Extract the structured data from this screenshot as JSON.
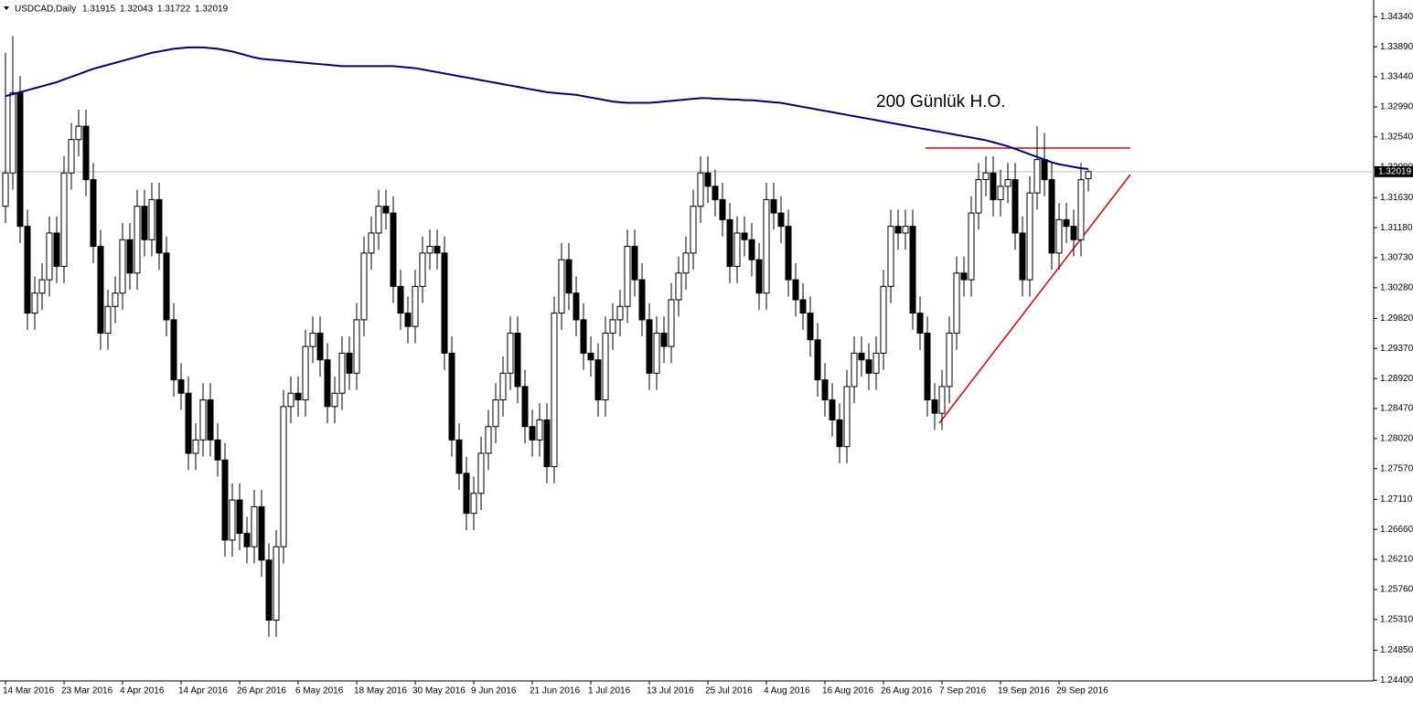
{
  "chart_data": {
    "type": "candlestick",
    "title": "USDCAD,Daily",
    "categories": [
      "14 Mar 2016",
      null,
      null,
      null,
      null,
      null,
      null,
      null,
      "23 Mar 2016",
      null,
      null,
      null,
      null,
      null,
      null,
      null,
      "4 Apr 2016",
      null,
      null,
      null,
      null,
      null,
      null,
      null,
      "14 Apr 2016",
      null,
      null,
      null,
      null,
      null,
      null,
      null,
      "26 Apr 2016",
      null,
      null,
      null,
      null,
      null,
      null,
      null,
      "6 May 2016",
      null,
      null,
      null,
      null,
      null,
      null,
      null,
      "18 May 2016",
      null,
      null,
      null,
      null,
      null,
      null,
      null,
      "30 May 2016",
      null,
      null,
      null,
      null,
      null,
      null,
      null,
      "9 Jun 2016",
      null,
      null,
      null,
      null,
      null,
      null,
      null,
      "21 Jun 2016",
      null,
      null,
      null,
      null,
      null,
      null,
      null,
      "1 Jul 2016",
      null,
      null,
      null,
      null,
      null,
      null,
      null,
      "13 Jul 2016",
      null,
      null,
      null,
      null,
      null,
      null,
      null,
      "25 Jul 2016",
      null,
      null,
      null,
      null,
      null,
      null,
      null,
      "4 Aug 2016",
      null,
      null,
      null,
      null,
      null,
      null,
      null,
      "16 Aug 2016",
      null,
      null,
      null,
      null,
      null,
      null,
      null,
      "26 Aug 2016",
      null,
      null,
      null,
      null,
      null,
      null,
      null,
      "7 Sep 2016",
      null,
      null,
      null,
      null,
      null,
      null,
      null,
      "19 Sep 2016",
      null,
      null,
      null,
      null,
      null,
      null,
      null,
      "29 Sep 2016",
      null,
      null,
      null,
      null
    ],
    "open": [
      1.315,
      1.32,
      1.332,
      1.312,
      1.299,
      1.302,
      1.304,
      1.311,
      1.306,
      1.32,
      1.325,
      1.327,
      1.319,
      1.309,
      1.296,
      1.3,
      1.302,
      1.31,
      1.305,
      1.315,
      1.31,
      1.316,
      1.308,
      1.298,
      1.289,
      1.287,
      1.278,
      1.28,
      1.286,
      1.28,
      1.277,
      1.265,
      1.271,
      1.266,
      1.264,
      1.27,
      1.262,
      1.253,
      1.264,
      1.285,
      1.287,
      1.286,
      1.294,
      1.296,
      1.292,
      1.285,
      1.287,
      1.293,
      1.29,
      1.298,
      1.308,
      1.311,
      1.315,
      1.314,
      1.303,
      1.299,
      1.297,
      1.303,
      1.308,
      1.309,
      1.308,
      1.293,
      1.28,
      1.275,
      1.269,
      1.272,
      1.278,
      1.282,
      1.286,
      1.29,
      1.296,
      1.288,
      1.282,
      1.28,
      1.283,
      1.276,
      1.299,
      1.307,
      1.302,
      1.298,
      1.293,
      1.292,
      1.286,
      1.296,
      1.298,
      1.3,
      1.309,
      1.304,
      1.298,
      1.29,
      1.296,
      1.294,
      1.301,
      1.305,
      1.308,
      1.315,
      1.32,
      1.318,
      1.316,
      1.313,
      1.306,
      1.311,
      1.31,
      1.307,
      1.302,
      1.316,
      1.314,
      1.312,
      1.304,
      1.301,
      1.299,
      1.295,
      1.289,
      1.286,
      1.283,
      1.279,
      1.288,
      1.293,
      1.292,
      1.29,
      1.293,
      1.303,
      1.312,
      1.311,
      1.312,
      1.299,
      1.296,
      1.286,
      1.284,
      1.288,
      1.296,
      1.305,
      1.304,
      1.314,
      1.319,
      1.32,
      1.316,
      1.318,
      1.319,
      1.311,
      1.304,
      1.317,
      1.322,
      1.319,
      1.308,
      1.313,
      1.312,
      1.31,
      1.31915
    ],
    "high": [
      1.338,
      1.3405,
      1.3345,
      1.3145,
      1.3045,
      1.3065,
      1.3135,
      1.3135,
      1.3225,
      1.3275,
      1.3295,
      1.3295,
      1.3215,
      1.3115,
      1.3025,
      1.3045,
      1.3125,
      1.3125,
      1.3175,
      1.3175,
      1.3185,
      1.3185,
      1.3105,
      1.3005,
      1.2915,
      1.2895,
      1.2825,
      1.2885,
      1.2885,
      1.2825,
      1.2795,
      1.2735,
      1.2735,
      1.2685,
      1.2725,
      1.2725,
      1.2645,
      1.2665,
      1.2875,
      1.2895,
      1.2895,
      1.2965,
      1.2985,
      1.2985,
      1.2945,
      1.2895,
      1.2955,
      1.2955,
      1.3005,
      1.3105,
      1.3135,
      1.3175,
      1.3175,
      1.3165,
      1.3055,
      1.3015,
      1.3055,
      1.3105,
      1.3115,
      1.3115,
      1.3105,
      1.2955,
      1.2825,
      1.2775,
      1.2745,
      1.2805,
      1.2845,
      1.2885,
      1.2925,
      1.2985,
      1.2985,
      1.2905,
      1.2845,
      1.2855,
      1.2855,
      1.3015,
      1.3095,
      1.3095,
      1.3045,
      1.3005,
      1.2955,
      1.2945,
      1.2985,
      1.3005,
      1.3025,
      1.3115,
      1.3115,
      1.3065,
      1.3005,
      1.2985,
      1.2985,
      1.3035,
      1.3075,
      1.3105,
      1.3175,
      1.3225,
      1.3225,
      1.3205,
      1.3185,
      1.3155,
      1.3135,
      1.3135,
      1.3125,
      1.3095,
      1.3185,
      1.3185,
      1.3165,
      1.3145,
      1.3065,
      1.3035,
      1.3015,
      1.2975,
      1.2915,
      1.2885,
      1.2855,
      1.2905,
      1.2955,
      1.2955,
      1.2945,
      1.2955,
      1.3055,
      1.3145,
      1.3145,
      1.3145,
      1.3145,
      1.3015,
      1.2985,
      1.2885,
      1.2905,
      1.2985,
      1.3075,
      1.3075,
      1.3165,
      1.3215,
      1.3225,
      1.3225,
      1.3205,
      1.3215,
      1.3215,
      1.3135,
      1.3195,
      1.327,
      1.326,
      1.3215,
      1.3155,
      1.3155,
      1.3145,
      1.3215,
      1.32043
    ],
    "low": [
      1.3125,
      1.3175,
      1.3095,
      1.2965,
      1.2965,
      1.2995,
      1.3015,
      1.3035,
      1.3035,
      1.3175,
      1.3225,
      1.3165,
      1.3065,
      1.2935,
      1.2935,
      1.2975,
      1.2995,
      1.3025,
      1.3025,
      1.3075,
      1.3075,
      1.3055,
      1.2955,
      1.2865,
      1.2845,
      1.2755,
      1.2755,
      1.2775,
      1.2775,
      1.2745,
      1.2625,
      1.2625,
      1.2635,
      1.2615,
      1.2615,
      1.2595,
      1.2505,
      1.2505,
      1.2615,
      1.2825,
      1.2835,
      1.2835,
      1.2915,
      1.2895,
      1.2825,
      1.2825,
      1.2845,
      1.2875,
      1.2875,
      1.2955,
      1.3055,
      1.3085,
      1.3115,
      1.3005,
      1.2965,
      1.2945,
      1.2945,
      1.3005,
      1.3055,
      1.3055,
      1.2905,
      1.2775,
      1.2725,
      1.2665,
      1.2665,
      1.2695,
      1.2755,
      1.2795,
      1.2835,
      1.2875,
      1.2855,
      1.2795,
      1.2775,
      1.2775,
      1.2735,
      1.2735,
      1.2965,
      1.2995,
      1.2955,
      1.2905,
      1.2895,
      1.2835,
      1.2835,
      1.2935,
      1.2955,
      1.2975,
      1.3015,
      1.2955,
      1.2875,
      1.2875,
      1.2915,
      1.2915,
      1.2985,
      1.3025,
      1.3055,
      1.3125,
      1.3155,
      1.3135,
      1.3105,
      1.3035,
      1.3035,
      1.3075,
      1.3045,
      1.2995,
      1.2995,
      1.3115,
      1.3095,
      1.3015,
      1.2985,
      1.2965,
      1.2925,
      1.2865,
      1.2835,
      1.2805,
      1.2765,
      1.2765,
      1.2855,
      1.2895,
      1.2875,
      1.2875,
      1.2905,
      1.3005,
      1.3085,
      1.3085,
      1.2965,
      1.2935,
      1.2835,
      1.2815,
      1.2815,
      1.2855,
      1.2935,
      1.3015,
      1.3015,
      1.3115,
      1.3165,
      1.3135,
      1.3135,
      1.3155,
      1.3085,
      1.3015,
      1.3015,
      1.3145,
      1.3165,
      1.3055,
      1.3055,
      1.3095,
      1.3075,
      1.3075,
      1.31722
    ],
    "close": [
      1.32,
      1.332,
      1.312,
      1.299,
      1.302,
      1.304,
      1.311,
      1.306,
      1.32,
      1.325,
      1.327,
      1.319,
      1.309,
      1.296,
      1.3,
      1.302,
      1.31,
      1.305,
      1.315,
      1.31,
      1.316,
      1.308,
      1.298,
      1.289,
      1.287,
      1.278,
      1.28,
      1.286,
      1.28,
      1.277,
      1.265,
      1.271,
      1.266,
      1.264,
      1.27,
      1.262,
      1.253,
      1.264,
      1.285,
      1.287,
      1.286,
      1.294,
      1.296,
      1.292,
      1.285,
      1.287,
      1.293,
      1.29,
      1.298,
      1.308,
      1.311,
      1.315,
      1.314,
      1.303,
      1.299,
      1.297,
      1.303,
      1.308,
      1.309,
      1.308,
      1.293,
      1.28,
      1.275,
      1.269,
      1.272,
      1.278,
      1.282,
      1.286,
      1.29,
      1.296,
      1.288,
      1.282,
      1.28,
      1.283,
      1.276,
      1.299,
      1.307,
      1.302,
      1.298,
      1.293,
      1.292,
      1.286,
      1.296,
      1.298,
      1.3,
      1.309,
      1.304,
      1.298,
      1.29,
      1.296,
      1.294,
      1.301,
      1.305,
      1.308,
      1.315,
      1.32,
      1.318,
      1.316,
      1.313,
      1.306,
      1.311,
      1.31,
      1.307,
      1.302,
      1.316,
      1.314,
      1.312,
      1.304,
      1.301,
      1.299,
      1.295,
      1.289,
      1.286,
      1.283,
      1.279,
      1.288,
      1.293,
      1.292,
      1.29,
      1.293,
      1.303,
      1.312,
      1.311,
      1.312,
      1.299,
      1.296,
      1.286,
      1.284,
      1.288,
      1.296,
      1.305,
      1.304,
      1.314,
      1.319,
      1.32,
      1.316,
      1.318,
      1.319,
      1.311,
      1.304,
      1.317,
      1.322,
      1.319,
      1.308,
      1.313,
      1.312,
      1.31,
      1.319,
      1.32019
    ],
    "up_color": "#ffffff",
    "down_color": "#000000",
    "series": [
      {
        "name": "200 Günlük H.O.",
        "color": "#00007f",
        "values": [
          1.3315,
          1.3318,
          1.3321,
          1.3324,
          1.3327,
          1.333,
          1.3333,
          1.3336,
          1.334,
          1.3344,
          1.3348,
          1.3352,
          1.3356,
          1.3359,
          1.3362,
          1.3365,
          1.3368,
          1.3371,
          1.3374,
          1.3377,
          1.338,
          1.3382,
          1.3384,
          1.3386,
          1.3387,
          1.3388,
          1.3388,
          1.3388,
          1.3387,
          1.3386,
          1.3384,
          1.3382,
          1.3379,
          1.3376,
          1.3373,
          1.3371,
          1.337,
          1.3369,
          1.3368,
          1.3367,
          1.3366,
          1.3365,
          1.3364,
          1.3363,
          1.3362,
          1.3361,
          1.336,
          1.336,
          1.336,
          1.336,
          1.336,
          1.336,
          1.336,
          1.336,
          1.3359,
          1.3358,
          1.3357,
          1.3355,
          1.3353,
          1.3351,
          1.3349,
          1.3347,
          1.3345,
          1.3343,
          1.3341,
          1.3339,
          1.3337,
          1.3335,
          1.3333,
          1.3331,
          1.3329,
          1.3327,
          1.3325,
          1.3323,
          1.3321,
          1.332,
          1.3319,
          1.3318,
          1.3317,
          1.3315,
          1.3313,
          1.3311,
          1.3309,
          1.3307,
          1.3306,
          1.3305,
          1.3305,
          1.3305,
          1.3305,
          1.3306,
          1.3307,
          1.3308,
          1.3309,
          1.331,
          1.3311,
          1.3312,
          1.3312,
          1.3311,
          1.3311,
          1.331,
          1.331,
          1.3309,
          1.3309,
          1.3308,
          1.3307,
          1.3306,
          1.3305,
          1.3303,
          1.3301,
          1.3299,
          1.3297,
          1.3295,
          1.3293,
          1.3291,
          1.3289,
          1.3287,
          1.3285,
          1.3283,
          1.3281,
          1.3279,
          1.3277,
          1.3275,
          1.3273,
          1.3271,
          1.3269,
          1.3267,
          1.3265,
          1.3263,
          1.3261,
          1.3259,
          1.3257,
          1.3255,
          1.3253,
          1.3251,
          1.3249,
          1.3246,
          1.3243,
          1.324,
          1.3236,
          1.3232,
          1.3228,
          1.3224,
          1.322,
          1.3216,
          1.3213,
          1.3211,
          1.3209,
          1.3207,
          1.3206
        ]
      }
    ],
    "ylim": [
      1.2439,
      1.3455
    ],
    "yticks": [
      {
        "value": 1.3434,
        "label": "1.34340"
      },
      {
        "value": 1.3389,
        "label": "1.33890"
      },
      {
        "value": 1.3344,
        "label": "1.33440"
      },
      {
        "value": 1.3299,
        "label": "1.32990"
      },
      {
        "value": 1.3254,
        "label": "1.32540"
      },
      {
        "value": 1.3209,
        "label": "1.32090"
      },
      {
        "value": 1.3163,
        "label": "1.31630"
      },
      {
        "value": 1.3118,
        "label": "1.31180"
      },
      {
        "value": 1.3073,
        "label": "1.30730"
      },
      {
        "value": 1.3028,
        "label": "1.30280"
      },
      {
        "value": 1.2982,
        "label": "1.29820"
      },
      {
        "value": 1.2937,
        "label": "1.29370"
      },
      {
        "value": 1.2892,
        "label": "1.28920"
      },
      {
        "value": 1.2847,
        "label": "1.28470"
      },
      {
        "value": 1.2802,
        "label": "1.28020"
      },
      {
        "value": 1.2757,
        "label": "1.27570"
      },
      {
        "value": 1.2711,
        "label": "1.27110"
      },
      {
        "value": 1.2666,
        "label": "1.26660"
      },
      {
        "value": 1.2621,
        "label": "1.26210"
      },
      {
        "value": 1.2576,
        "label": "1.25760"
      },
      {
        "value": 1.2531,
        "label": "1.25310"
      },
      {
        "value": 1.2485,
        "label": "1.24850"
      },
      {
        "value": 1.244,
        "label": "1.24400"
      }
    ],
    "grid": false
  }
}
